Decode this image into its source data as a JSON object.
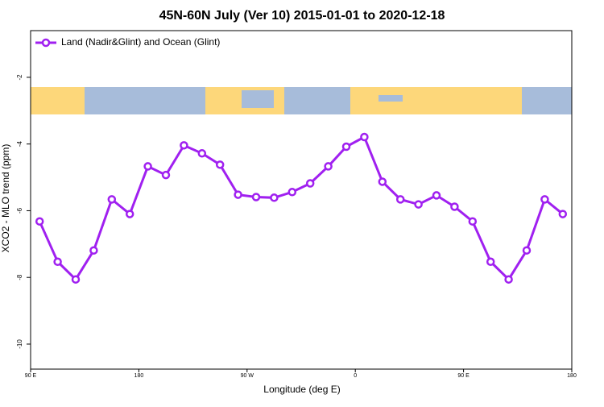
{
  "chart_data": {
    "type": "line",
    "title": "45N-60N July (Ver 10)   2015-01-01 to 2020-12-18",
    "x_label": "Longitude (deg E)",
    "y_label": "XCO2 - MLO trend (ppm)",
    "x": [
      97.5,
      112.5,
      127.5,
      142.5,
      157.5,
      172.5,
      187.5,
      202.5,
      217.5,
      232.5,
      247.5,
      262.5,
      277.5,
      292.5,
      307.5,
      322.5,
      337.5,
      352.5,
      367.5,
      382.5,
      397.5,
      412.5,
      427.5,
      442.5,
      457.5,
      472.5,
      487.5,
      502.5,
      517.5,
      532.5
    ],
    "series": [
      {
        "name": "Land (Nadir&Glint) and Ocean (Glint)",
        "color": "#a020f0",
        "values": [
          -6.32,
          -7.53,
          -8.06,
          -7.19,
          -5.66,
          -6.1,
          -4.67,
          -4.93,
          -4.04,
          -4.28,
          -4.62,
          -5.52,
          -5.59,
          -5.61,
          -5.44,
          -5.18,
          -4.67,
          -4.08,
          -3.79,
          -5.13,
          -5.66,
          -5.81,
          -5.54,
          -5.88,
          -6.32,
          -7.53,
          -8.06,
          -7.19,
          -5.66,
          -6.1
        ]
      }
    ],
    "xlim": [
      90,
      540
    ],
    "ylim": [
      -10.75,
      -0.6
    ],
    "xticks": [
      {
        "value": 90,
        "label": "90 E"
      },
      {
        "value": 180,
        "label": "180"
      },
      {
        "value": 270,
        "label": "90 W"
      },
      {
        "value": 360,
        "label": "0"
      },
      {
        "value": 450,
        "label": "90 E"
      },
      {
        "value": 540,
        "label": "180"
      }
    ],
    "yticks": [
      -2,
      -4,
      -6,
      -8,
      -10
    ],
    "legend": "top-left"
  }
}
